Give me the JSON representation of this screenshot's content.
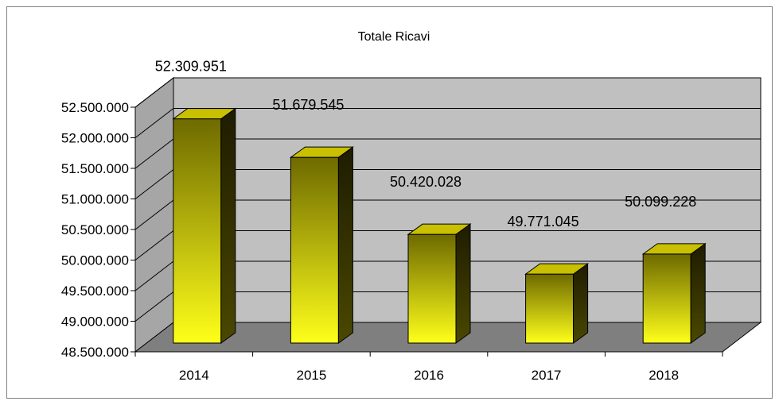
{
  "chart_data": {
    "type": "bar",
    "title": "Totale Ricavi",
    "xlabel": "",
    "ylabel": "",
    "categories": [
      "2014",
      "2015",
      "2016",
      "2017",
      "2018"
    ],
    "values": [
      52309951,
      51679545,
      50420028,
      49771045,
      50099228
    ],
    "data_labels": [
      "52.309.951",
      "51.679.545",
      "50.420.028",
      "49.771.045",
      "50.099.228"
    ],
    "ylim": [
      48500000,
      52500000
    ],
    "yticks": [
      48500000,
      49000000,
      49500000,
      50000000,
      50500000,
      51000000,
      51500000,
      52000000,
      52500000
    ],
    "ytick_labels": [
      "48.500.000",
      "49.000.000",
      "49.500.000",
      "50.000.000",
      "50.500.000",
      "51.000.000",
      "51.500.000",
      "52.000.000",
      "52.500.000"
    ],
    "grid": true,
    "style": "3d-column",
    "colors": {
      "bar_top": "#6e6a00",
      "bar_bottom": "#ffff1a",
      "bar_side": "#2e2c00",
      "bar_cap": "#c8c000",
      "wall": "#c0c0c0",
      "floor": "#7f7f7f",
      "side_wall": "#a6a6a6"
    }
  }
}
